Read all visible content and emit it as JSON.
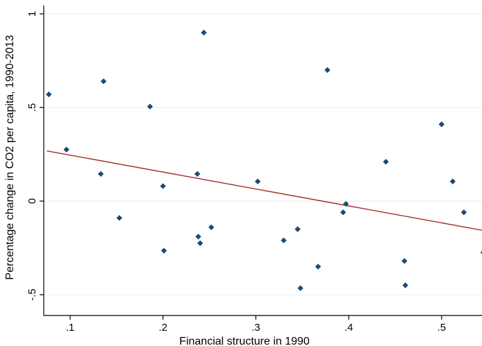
{
  "chart_data": {
    "type": "scatter",
    "xlabel": "Financial structure in 1990",
    "ylabel": "Percentage change in CO2 per capita, 1990-2013",
    "xlim": [
      0.075,
      0.545
    ],
    "ylim": [
      -0.6,
      1.02
    ],
    "xticks": [
      0.1,
      0.2,
      0.3,
      0.4,
      0.5
    ],
    "xtick_labels": [
      ".1",
      ".2",
      ".3",
      ".4",
      ".5"
    ],
    "yticks": [
      -0.5,
      0,
      0.5,
      1
    ],
    "ytick_labels": [
      "-.5",
      "0",
      ".5",
      "1"
    ],
    "grid": "horizontal",
    "points": [
      {
        "x": 0.077,
        "y": 0.57
      },
      {
        "x": 0.096,
        "y": 0.275
      },
      {
        "x": 0.133,
        "y": 0.145
      },
      {
        "x": 0.136,
        "y": 0.64
      },
      {
        "x": 0.153,
        "y": -0.09
      },
      {
        "x": 0.186,
        "y": 0.505
      },
      {
        "x": 0.2,
        "y": 0.08
      },
      {
        "x": 0.201,
        "y": -0.265
      },
      {
        "x": 0.237,
        "y": 0.145
      },
      {
        "x": 0.238,
        "y": -0.19
      },
      {
        "x": 0.24,
        "y": -0.225
      },
      {
        "x": 0.244,
        "y": 0.9
      },
      {
        "x": 0.252,
        "y": -0.14
      },
      {
        "x": 0.302,
        "y": 0.105
      },
      {
        "x": 0.33,
        "y": -0.21
      },
      {
        "x": 0.345,
        "y": -0.15
      },
      {
        "x": 0.348,
        "y": -0.465
      },
      {
        "x": 0.367,
        "y": -0.35
      },
      {
        "x": 0.377,
        "y": 0.7
      },
      {
        "x": 0.394,
        "y": -0.06
      },
      {
        "x": 0.397,
        "y": -0.015
      },
      {
        "x": 0.44,
        "y": 0.21
      },
      {
        "x": 0.46,
        "y": -0.32
      },
      {
        "x": 0.461,
        "y": -0.45
      },
      {
        "x": 0.5,
        "y": 0.41
      },
      {
        "x": 0.512,
        "y": 0.105
      },
      {
        "x": 0.524,
        "y": -0.06
      },
      {
        "x": 0.545,
        "y": -0.275
      }
    ],
    "fit_line": {
      "x": [
        0.075,
        0.545
      ],
      "y": [
        0.268,
        -0.157
      ]
    },
    "colors": {
      "marker": "#1b4b76",
      "fit_line": "#a52a2a",
      "grid": "#e5eaf0",
      "axis": "#000000"
    }
  }
}
